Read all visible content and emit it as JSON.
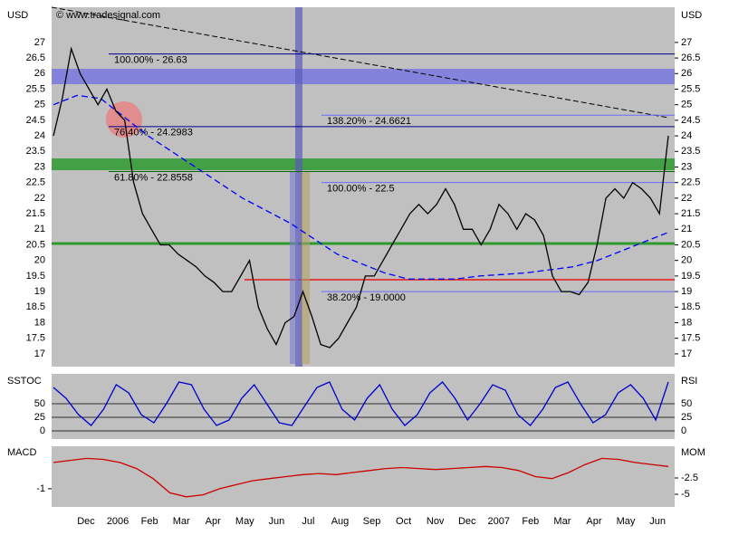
{
  "chart_data": {
    "type": "line",
    "source": "© www.tradesignal.com",
    "y_unit": "USD",
    "months": [
      "Dec",
      "2006",
      "Feb",
      "Mar",
      "Apr",
      "May",
      "Jun",
      "Jul",
      "Aug",
      "Sep",
      "Oct",
      "Nov",
      "Dec",
      "2007",
      "Feb",
      "Mar",
      "Apr",
      "May",
      "Jun"
    ],
    "price": {
      "color": "#000000",
      "values": [
        24.0,
        25.2,
        26.8,
        26.0,
        25.5,
        25.0,
        25.5,
        24.8,
        24.5,
        22.5,
        21.5,
        21.0,
        20.5,
        20.5,
        20.2,
        20.0,
        19.8,
        19.5,
        19.3,
        19.0,
        19.0,
        19.5,
        20.0,
        18.5,
        17.8,
        17.3,
        18.0,
        18.2,
        19.0,
        18.2,
        17.3,
        17.2,
        17.5,
        18.0,
        18.5,
        19.5,
        19.5,
        20.0,
        20.5,
        21.0,
        21.5,
        21.8,
        21.5,
        21.8,
        22.3,
        21.8,
        21.0,
        21.0,
        20.5,
        21.0,
        21.8,
        21.5,
        21.0,
        21.5,
        21.3,
        20.8,
        19.5,
        19.0,
        19.0,
        18.9,
        19.3,
        20.5,
        22.0,
        22.3,
        22.0,
        22.5,
        22.3,
        22.0,
        21.5,
        24.0
      ]
    },
    "moving_average": {
      "color": "#0000ff",
      "values": [
        25.0,
        25.3,
        25.2,
        24.6,
        24.0,
        23.5,
        23.0,
        22.5,
        22.0,
        21.6,
        21.2,
        20.7,
        20.2,
        19.9,
        19.6,
        19.4,
        19.4,
        19.4,
        19.5,
        19.55,
        19.6,
        19.7,
        19.8,
        20.0,
        20.3,
        20.6,
        20.9
      ]
    },
    "ylim": [
      16.59,
      28.13
    ],
    "yticks": [
      17,
      17.5,
      18,
      18.5,
      19,
      19.5,
      20,
      20.5,
      21,
      21.5,
      22,
      22.5,
      23,
      23.5,
      24,
      24.5,
      25,
      25.5,
      26,
      26.5,
      27
    ],
    "levels": [
      {
        "value": 26.63,
        "label": "100.00% - 26.63",
        "color": "#00008b"
      },
      {
        "value": 24.2983,
        "label": "76.40% - 24.2983",
        "color": "#00008b"
      },
      {
        "value": 22.8558,
        "label": "61.80% - 22.8558",
        "color": "#006400"
      },
      {
        "value": 24.6621,
        "label": "138.20% - 24.6621",
        "color": "#6a6aff"
      },
      {
        "value": 22.5,
        "label": "100.00% - 22.5",
        "color": "#6a6aff"
      },
      {
        "value": 19.0,
        "label": "38.20% - 19.0000",
        "color": "#6a6aff"
      }
    ],
    "sstoc": {
      "name": "SSTOC",
      "right_name": "RSI",
      "color": "#0000cc",
      "values": [
        80,
        60,
        30,
        10,
        40,
        85,
        70,
        30,
        15,
        50,
        90,
        85,
        40,
        10,
        20,
        60,
        85,
        50,
        15,
        10,
        45,
        80,
        90,
        40,
        20,
        60,
        85,
        40,
        10,
        30,
        70,
        90,
        60,
        20,
        50,
        85,
        75,
        30,
        10,
        40,
        80,
        90,
        50,
        15,
        30,
        70,
        85,
        60,
        20,
        90
      ],
      "ylim": [
        -15,
        105
      ],
      "yticks": [
        0,
        25,
        50
      ]
    },
    "macd": {
      "name": "MACD",
      "right_name": "MOM",
      "color": "#cc0000",
      "values": [
        0.3,
        0.4,
        0.5,
        0.45,
        0.3,
        0.0,
        -0.5,
        -1.2,
        -1.4,
        -1.3,
        -1.0,
        -0.8,
        -0.6,
        -0.5,
        -0.4,
        -0.3,
        -0.25,
        -0.3,
        -0.2,
        -0.1,
        0,
        0.05,
        0,
        -0.05,
        0,
        0.05,
        0.1,
        0.05,
        -0.1,
        -0.4,
        -0.5,
        -0.2,
        0.2,
        0.5,
        0.45,
        0.3,
        0.2,
        0.1
      ],
      "ylim": [
        -1.9,
        1.1
      ],
      "yticks": [
        -1
      ],
      "y2lim": [
        -6.94,
        2.36
      ],
      "y2ticks": [
        -2.5,
        -5
      ]
    }
  }
}
